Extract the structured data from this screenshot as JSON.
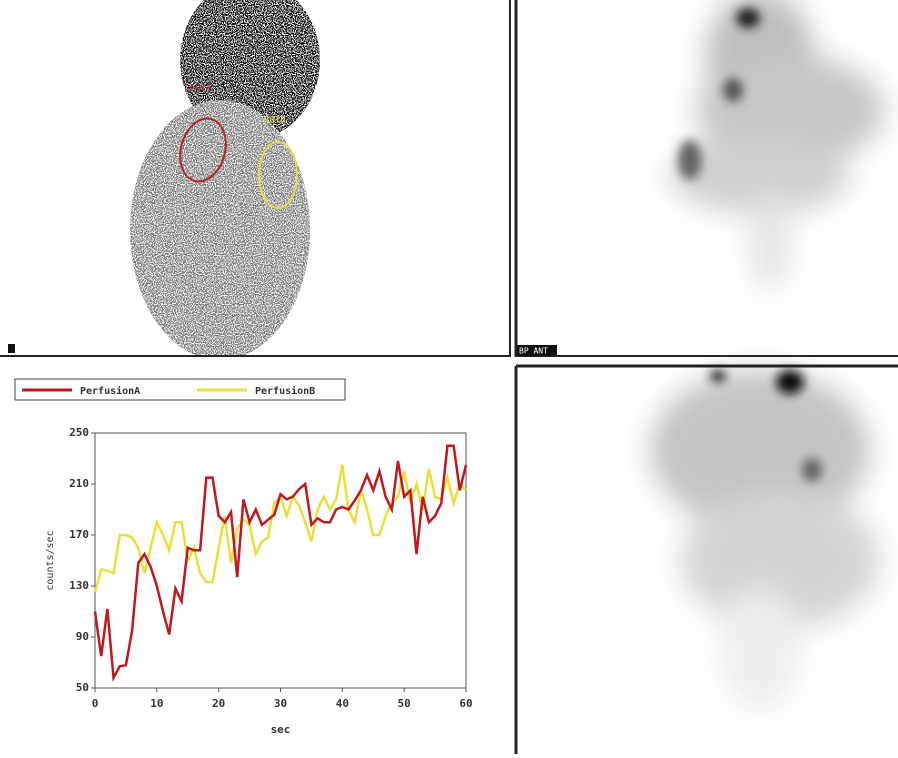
{
  "panels": {
    "top_left": {
      "roi_labels": [
        "ROIA",
        "ROIB"
      ]
    },
    "top_right": {
      "label": "BP ANT"
    }
  },
  "chart_data": {
    "type": "line",
    "x": [
      0,
      1,
      2,
      3,
      4,
      5,
      6,
      7,
      8,
      9,
      10,
      11,
      12,
      13,
      14,
      15,
      16,
      17,
      18,
      19,
      20,
      21,
      22,
      23,
      24,
      25,
      26,
      27,
      28,
      29,
      30,
      31,
      32,
      33,
      34,
      35,
      36,
      37,
      38,
      39,
      40,
      41,
      42,
      43,
      44,
      45,
      46,
      47,
      48,
      49,
      50,
      51,
      52,
      53,
      54,
      55,
      56,
      57,
      58,
      59,
      60
    ],
    "series": [
      {
        "name": "PerfusionA",
        "color": "#c0181e",
        "values": [
          110,
          75,
          112,
          58,
          67,
          68,
          95,
          148,
          155,
          145,
          130,
          110,
          92,
          128,
          118,
          160,
          158,
          158,
          215,
          215,
          185,
          180,
          188,
          137,
          198,
          180,
          190,
          178,
          182,
          186,
          202,
          198,
          200,
          206,
          210,
          178,
          183,
          180,
          180,
          190,
          192,
          190,
          197,
          205,
          217,
          205,
          220,
          200,
          190,
          228,
          200,
          205,
          155,
          200,
          180,
          185,
          195,
          240,
          240,
          205,
          225
        ]
      },
      {
        "name": "PerfusionB",
        "color": "#e8df3a",
        "values": [
          125,
          143,
          142,
          140,
          170,
          170,
          168,
          160,
          140,
          160,
          180,
          170,
          158,
          180,
          180,
          150,
          160,
          140,
          133,
          133,
          160,
          185,
          148,
          175,
          182,
          178,
          155,
          165,
          168,
          195,
          200,
          185,
          200,
          193,
          180,
          165,
          190,
          200,
          190,
          198,
          225,
          190,
          180,
          205,
          190,
          170,
          170,
          185,
          195,
          200,
          220,
          195,
          210,
          190,
          222,
          200,
          198,
          215,
          195,
          210,
          205
        ]
      }
    ],
    "xlim": [
      0,
      60
    ],
    "xticks": [
      0,
      10,
      20,
      30,
      40,
      50,
      60
    ],
    "ylim": [
      50,
      250
    ],
    "yticks": [
      50,
      90,
      130,
      170,
      210,
      250
    ],
    "xlabel": "sec",
    "ylabel": "counts/sec"
  }
}
